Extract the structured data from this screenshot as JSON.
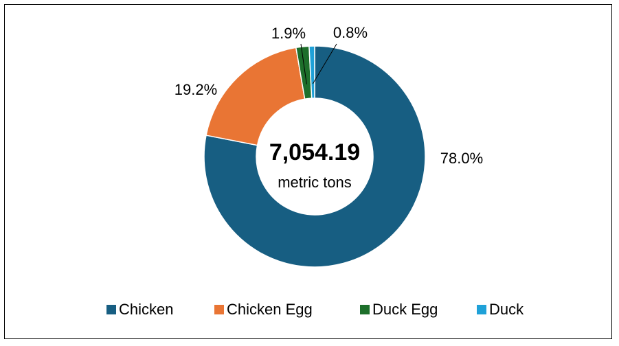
{
  "chart_data": {
    "type": "pie",
    "variant": "donut",
    "center": {
      "total": "7,054.19",
      "unit": "metric tons"
    },
    "categories": [
      "Chicken",
      "Chicken Egg",
      "Duck Egg",
      "Duck"
    ],
    "values": [
      78.0,
      19.2,
      1.9,
      0.8
    ],
    "data_labels": [
      "78.0%",
      "19.2%",
      "1.9%",
      "0.8%"
    ],
    "colors": [
      "#175e82",
      "#e97534",
      "#1d6f2b",
      "#1fa1d8"
    ],
    "legend_position": "bottom"
  }
}
